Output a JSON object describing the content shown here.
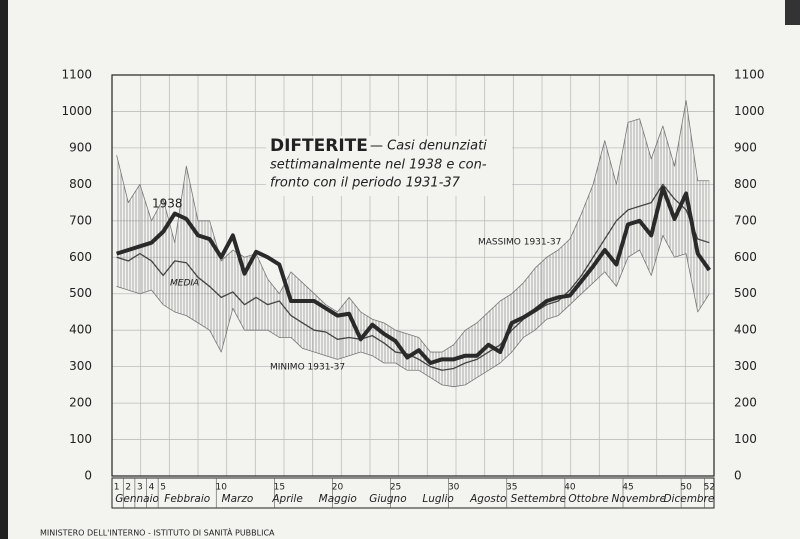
{
  "chart_data": {
    "type": "line",
    "title": [
      "DIFTERITE",
      "— Casi denunziati",
      "settimanalmente nel 1938 e con-",
      "fronto con il periodo 1931-37"
    ],
    "x": [
      1,
      2,
      3,
      4,
      5,
      6,
      7,
      8,
      9,
      10,
      11,
      12,
      13,
      14,
      15,
      16,
      17,
      18,
      19,
      20,
      21,
      22,
      23,
      24,
      25,
      26,
      27,
      28,
      29,
      30,
      31,
      32,
      33,
      34,
      35,
      36,
      37,
      38,
      39,
      40,
      41,
      42,
      43,
      44,
      45,
      46,
      47,
      48,
      49,
      50,
      51,
      52
    ],
    "xlim": [
      0.6,
      52.4
    ],
    "xticks": [
      1,
      2,
      3,
      4,
      5,
      10,
      15,
      20,
      25,
      30,
      35,
      40,
      45,
      50,
      52
    ],
    "months": [
      "Gennaio",
      "Febbraio",
      "Marzo",
      "Aprile",
      "Maggio",
      "Giugno",
      "Luglio",
      "Agosto",
      "Settembre",
      "Ottobre",
      "Novembre",
      "Dicembre"
    ],
    "ylim": [
      0,
      1100
    ],
    "yticks": [
      0,
      100,
      200,
      300,
      400,
      500,
      600,
      700,
      800,
      900,
      1000,
      1100
    ],
    "grid": true,
    "series": [
      {
        "name": "1938",
        "color": "#2a2a2a",
        "values": [
          610,
          620,
          630,
          640,
          670,
          720,
          705,
          660,
          650,
          600,
          660,
          555,
          615,
          600,
          580,
          480,
          480,
          480,
          460,
          440,
          445,
          375,
          415,
          390,
          370,
          325,
          345,
          310,
          320,
          320,
          330,
          330,
          360,
          340,
          420,
          435,
          455,
          480,
          490,
          495,
          535,
          575,
          620,
          580,
          690,
          700,
          660,
          790,
          705,
          775,
          610,
          565
        ]
      },
      {
        "name": "MEDIA",
        "color": "#444444",
        "values": [
          600,
          590,
          610,
          590,
          550,
          590,
          585,
          545,
          520,
          490,
          505,
          470,
          490,
          470,
          480,
          440,
          420,
          400,
          395,
          375,
          380,
          375,
          385,
          365,
          340,
          335,
          320,
          300,
          290,
          295,
          310,
          320,
          340,
          360,
          400,
          430,
          450,
          470,
          480,
          510,
          550,
          600,
          650,
          700,
          730,
          740,
          750,
          800,
          760,
          730,
          650,
          640
        ]
      },
      {
        "name": "MASSIMO 1931-37",
        "color": "#777777",
        "values": [
          880,
          750,
          800,
          700,
          760,
          640,
          850,
          700,
          700,
          590,
          620,
          600,
          610,
          540,
          500,
          560,
          530,
          500,
          470,
          450,
          490,
          450,
          430,
          420,
          400,
          390,
          380,
          340,
          340,
          360,
          400,
          420,
          450,
          480,
          500,
          530,
          570,
          600,
          620,
          650,
          720,
          800,
          920,
          800,
          970,
          980,
          870,
          960,
          850,
          1030,
          810,
          810
        ]
      },
      {
        "name": "MINIMO 1931-37",
        "color": "#777777",
        "values": [
          520,
          510,
          500,
          510,
          470,
          450,
          440,
          420,
          400,
          340,
          460,
          400,
          400,
          400,
          380,
          380,
          350,
          340,
          330,
          320,
          330,
          340,
          330,
          310,
          310,
          290,
          290,
          270,
          250,
          245,
          250,
          270,
          290,
          310,
          340,
          380,
          400,
          430,
          440,
          470,
          500,
          530,
          560,
          520,
          600,
          620,
          550,
          660,
          600,
          610,
          450,
          500
        ]
      }
    ],
    "footer": "MINISTERO DELL'INTERNO - ISTITUTO DI SANITÀ PUBBLICA"
  }
}
